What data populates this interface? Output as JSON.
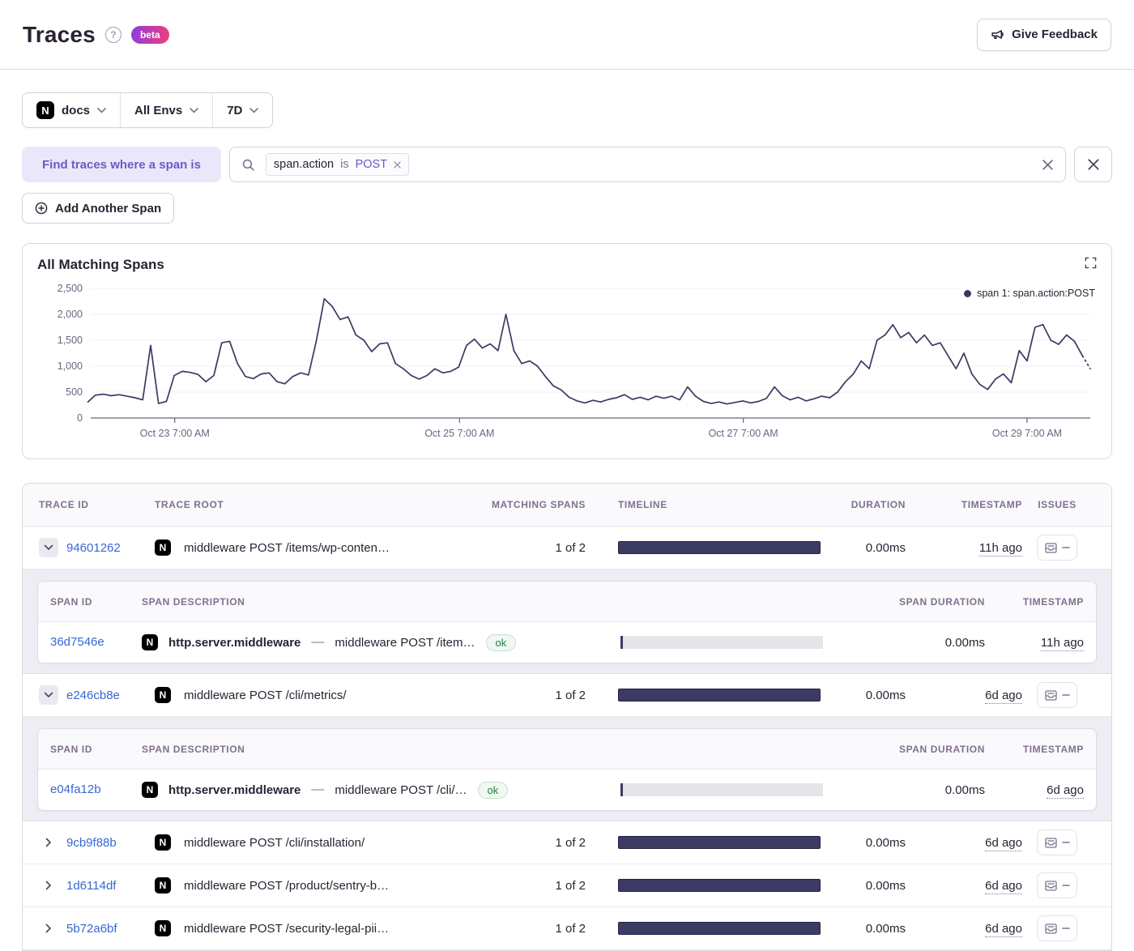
{
  "header": {
    "title": "Traces",
    "help_glyph": "?",
    "beta_badge": "beta",
    "feedback_button": "Give Feedback"
  },
  "filter_bar": {
    "project_letter": "N",
    "project": "docs",
    "environment": "All Envs",
    "date_range": "7D"
  },
  "span_search": {
    "label": "Find traces where a span is",
    "token": {
      "key": "span.action",
      "operator": "is",
      "value": "POST"
    },
    "add_button": "Add Another Span"
  },
  "chart": {
    "title": "All Matching Spans",
    "legend": "span 1: span.action:POST"
  },
  "chart_data": {
    "type": "line",
    "title": "All Matching Spans",
    "series_name": "span 1: span.action:POST",
    "line_color": "#393a63",
    "grid": true,
    "legend_position": "top-right",
    "ylim": [
      0,
      2500
    ],
    "y_ticks": [
      {
        "v": 0,
        "label": "0"
      },
      {
        "v": 500,
        "label": "500"
      },
      {
        "v": 1000,
        "label": "1,000"
      },
      {
        "v": 1500,
        "label": "1,500"
      },
      {
        "v": 2000,
        "label": "2,000"
      },
      {
        "v": 2500,
        "label": "2,500"
      }
    ],
    "x_ticks": [
      {
        "f": 0.087,
        "label": "Oct 23 7:00 AM"
      },
      {
        "f": 0.371,
        "label": "Oct 25 7:00 AM"
      },
      {
        "f": 0.654,
        "label": "Oct 27 7:00 AM"
      },
      {
        "f": 0.937,
        "label": "Oct 29 7:00 AM"
      }
    ],
    "values": [
      300,
      440,
      460,
      430,
      450,
      420,
      390,
      350,
      1400,
      280,
      320,
      820,
      900,
      880,
      840,
      700,
      820,
      1450,
      1480,
      1050,
      800,
      760,
      850,
      870,
      700,
      660,
      800,
      870,
      830,
      1500,
      2300,
      2150,
      1900,
      1950,
      1600,
      1500,
      1280,
      1430,
      1450,
      1050,
      950,
      820,
      750,
      820,
      950,
      870,
      900,
      980,
      1400,
      1520,
      1350,
      1430,
      1300,
      2000,
      1300,
      1050,
      1100,
      1000,
      800,
      620,
      540,
      400,
      330,
      290,
      340,
      310,
      360,
      390,
      450,
      360,
      400,
      350,
      420,
      380,
      420,
      350,
      600,
      420,
      320,
      280,
      310,
      270,
      300,
      330,
      290,
      320,
      380,
      600,
      430,
      350,
      400,
      330,
      370,
      420,
      390,
      500,
      700,
      850,
      1100,
      950,
      1500,
      1600,
      1800,
      1550,
      1650,
      1450,
      1600,
      1400,
      1450,
      1200,
      950,
      1250,
      850,
      650,
      550,
      750,
      850,
      680,
      1300,
      1100,
      1750,
      1800,
      1500,
      1420,
      1600,
      1480,
      1200,
      950
    ],
    "dashed_tail_points": 2
  },
  "table": {
    "columns": {
      "trace_id": "Trace ID",
      "trace_root": "Trace Root",
      "matching_spans": "Matching Spans",
      "timeline": "Timeline",
      "duration": "Duration",
      "timestamp": "Timestamp",
      "issues": "Issues"
    },
    "span_columns": {
      "span_id": "Span ID",
      "span_description": "Span Description",
      "span_duration": "Span Duration",
      "timestamp": "Timestamp"
    },
    "project_letter": "N",
    "rows": [
      {
        "trace_id": "94601262",
        "trace_root": "middleware POST /items/wp-conten…",
        "matching_spans": "1 of 2",
        "duration": "0.00ms",
        "timestamp": "11h ago",
        "expanded": true,
        "spans": [
          {
            "span_id": "36d7546e",
            "op": "http.server.middleware",
            "description": "middleware POST /item…",
            "status": "ok",
            "duration": "0.00ms",
            "timestamp": "11h ago"
          }
        ]
      },
      {
        "trace_id": "e246cb8e",
        "trace_root": "middleware POST /cli/metrics/",
        "matching_spans": "1 of 2",
        "duration": "0.00ms",
        "timestamp": "6d ago",
        "expanded": true,
        "spans": [
          {
            "span_id": "e04fa12b",
            "op": "http.server.middleware",
            "description": "middleware POST /cli/…",
            "status": "ok",
            "duration": "0.00ms",
            "timestamp": "6d ago"
          }
        ]
      },
      {
        "trace_id": "9cb9f88b",
        "trace_root": "middleware POST /cli/installation/",
        "matching_spans": "1 of 2",
        "duration": "0.00ms",
        "timestamp": "6d ago",
        "expanded": false
      },
      {
        "trace_id": "1d6114df",
        "trace_root": "middleware POST /product/sentry-b…",
        "matching_spans": "1 of 2",
        "duration": "0.00ms",
        "timestamp": "6d ago",
        "expanded": false
      },
      {
        "trace_id": "5b72a6bf",
        "trace_root": "middleware POST /security-legal-pii…",
        "matching_spans": "1 of 2",
        "duration": "0.00ms",
        "timestamp": "6d ago",
        "expanded": false
      }
    ]
  },
  "colors": {
    "accent_purple": "#6a5dc0",
    "link_blue": "#3568d4",
    "chart_navy": "#393a63",
    "bar_navy": "#3b3b63",
    "ok_green": "#257d45",
    "muted_purple_gray": "#80708f"
  }
}
